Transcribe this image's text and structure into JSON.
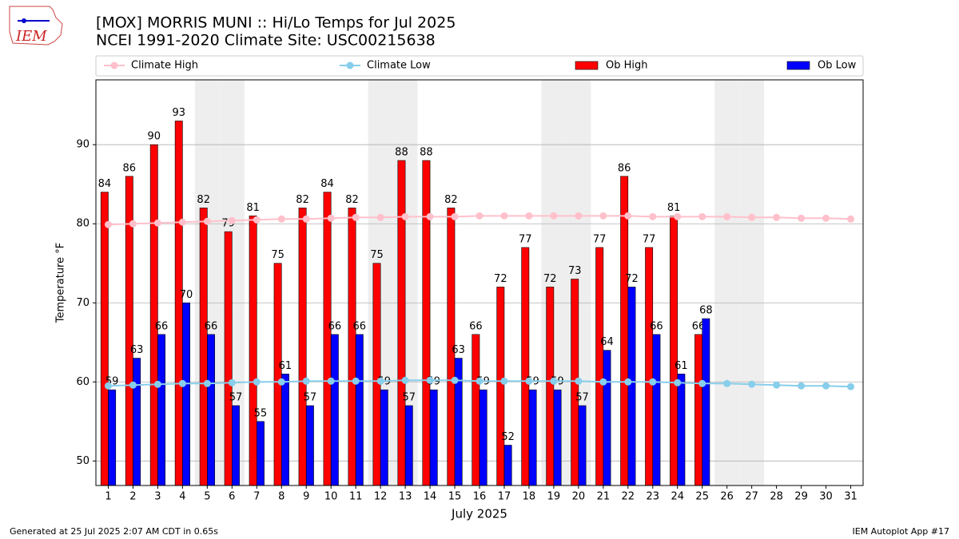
{
  "chart_data": {
    "type": "bar",
    "title": "[MOX] MORRIS MUNI :: Hi/Lo Temps for Jul 2025",
    "subtitle": "NCEI 1991-2020 Climate Site: USC00215638",
    "xlabel": "July 2025",
    "ylabel": "Temperature °F",
    "footer_left": "Generated at 25 Jul 2025 2:07 AM CDT in 0.65s",
    "footer_right": "IEM Autoplot App #17",
    "logo_text": "IEM",
    "x": [
      1,
      2,
      3,
      4,
      5,
      6,
      7,
      8,
      9,
      10,
      11,
      12,
      13,
      14,
      15,
      16,
      17,
      18,
      19,
      20,
      21,
      22,
      23,
      24,
      25,
      26,
      27,
      28,
      29,
      30,
      31
    ],
    "xlim": [
      0.5,
      31.5
    ],
    "ylim": [
      46.9,
      98.2
    ],
    "yticks": [
      50,
      60,
      70,
      80,
      90
    ],
    "grid": true,
    "weekend_days": [
      5,
      6,
      12,
      13,
      19,
      20,
      26,
      27
    ],
    "weekend_color": "#eeeeee",
    "series": [
      {
        "name": "Climate High",
        "kind": "line",
        "color": "#ffc0cb",
        "values": [
          79.9,
          80.0,
          80.1,
          80.2,
          80.3,
          80.4,
          80.5,
          80.6,
          80.6,
          80.7,
          80.8,
          80.8,
          80.9,
          80.9,
          80.9,
          81.0,
          81.0,
          81.0,
          81.0,
          81.0,
          81.0,
          81.0,
          80.9,
          80.9,
          80.9,
          80.9,
          80.8,
          80.8,
          80.7,
          80.7,
          80.6
        ]
      },
      {
        "name": "Climate Low",
        "kind": "line",
        "color": "#87ceeb",
        "values": [
          59.5,
          59.6,
          59.7,
          59.8,
          59.8,
          59.9,
          60.0,
          60.0,
          60.1,
          60.1,
          60.1,
          60.1,
          60.2,
          60.2,
          60.2,
          60.1,
          60.1,
          60.1,
          60.1,
          60.1,
          60.0,
          60.0,
          60.0,
          59.9,
          59.8,
          59.8,
          59.7,
          59.6,
          59.5,
          59.5,
          59.4
        ]
      },
      {
        "name": "Ob High",
        "kind": "bar",
        "color": "#ff0000",
        "offset": -0.15,
        "values": [
          84,
          86,
          90,
          93,
          82,
          79,
          81,
          75,
          82,
          84,
          82,
          75,
          88,
          88,
          82,
          66,
          72,
          77,
          72,
          73,
          77,
          86,
          77,
          81,
          66,
          null,
          null,
          null,
          null,
          null,
          null
        ]
      },
      {
        "name": "Ob Low",
        "kind": "bar",
        "color": "#0000ff",
        "offset": 0.15,
        "values": [
          59,
          63,
          66,
          70,
          66,
          57,
          55,
          61,
          57,
          66,
          66,
          59,
          57,
          59,
          63,
          59,
          52,
          59,
          59,
          57,
          64,
          72,
          66,
          61,
          68,
          null,
          null,
          null,
          null,
          null,
          null
        ]
      }
    ]
  }
}
